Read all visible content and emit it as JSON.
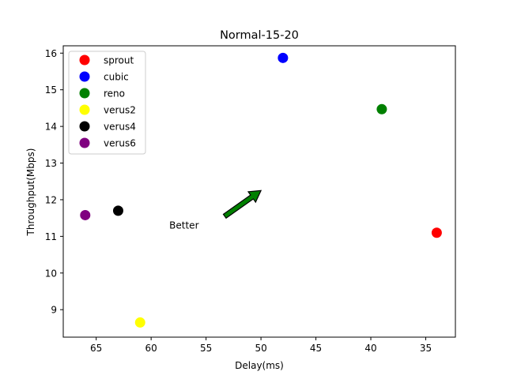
{
  "chart_data": {
    "type": "scatter",
    "title": "Normal-15-20",
    "xlabel": "Delay(ms)",
    "ylabel": "Throughput(Mbps)",
    "xlim": [
      68,
      32.3
    ],
    "ylim": [
      8.25,
      16.2
    ],
    "x_inverted": true,
    "xticks": [
      65,
      60,
      55,
      50,
      45,
      40,
      35
    ],
    "yticks": [
      9,
      10,
      11,
      12,
      13,
      14,
      15,
      16
    ],
    "grid": false,
    "legend_position": "top-left",
    "series": [
      {
        "name": "sprout",
        "color": "#ff0000",
        "x": 34,
        "y": 11.1
      },
      {
        "name": "cubic",
        "color": "#0000ff",
        "x": 48,
        "y": 15.87
      },
      {
        "name": "reno",
        "color": "#008000",
        "x": 39,
        "y": 14.47
      },
      {
        "name": "verus2",
        "color": "#ffff00",
        "x": 61,
        "y": 8.65
      },
      {
        "name": "verus4",
        "color": "#000000",
        "x": 63,
        "y": 11.7
      },
      {
        "name": "verus6",
        "color": "#800080",
        "x": 66,
        "y": 11.58
      }
    ],
    "annotation": {
      "text": "Better",
      "arrow_color": "#008000",
      "text_at": [
        57,
        11.3
      ],
      "arrow_from": [
        53.3,
        11.55
      ],
      "arrow_to": [
        50,
        12.25
      ]
    }
  }
}
